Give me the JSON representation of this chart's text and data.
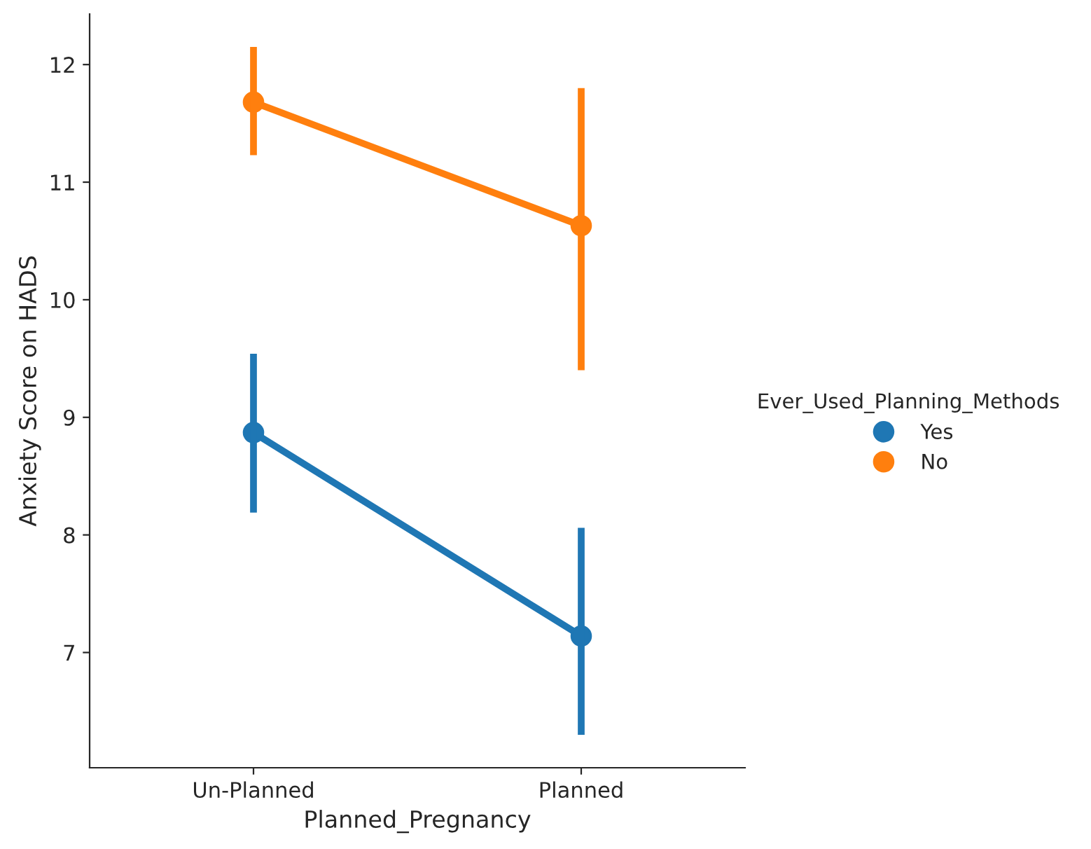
{
  "chart_data": {
    "type": "line",
    "xlabel": "Planned_Pregnancy",
    "ylabel": "Anxiety Score on HADS",
    "legend_title": "Ever_Used_Planning_Methods",
    "categories": [
      "Un-Planned",
      "Planned"
    ],
    "series": [
      {
        "name": "Yes",
        "color": "#1f77b4",
        "values": [
          8.87,
          7.14
        ],
        "errors": [
          [
            8.19,
            9.54
          ],
          [
            6.3,
            8.06
          ]
        ]
      },
      {
        "name": "No",
        "color": "#ff7f0e",
        "values": [
          11.68,
          10.63
        ],
        "errors": [
          [
            11.23,
            12.15
          ],
          [
            9.4,
            11.8
          ]
        ]
      }
    ],
    "ylim": [
      6.02,
      12.43
    ],
    "yticks": [
      7,
      8,
      9,
      10,
      11,
      12
    ],
    "marker": "circle",
    "line_style": "solid",
    "legend": "right",
    "grid": false
  }
}
